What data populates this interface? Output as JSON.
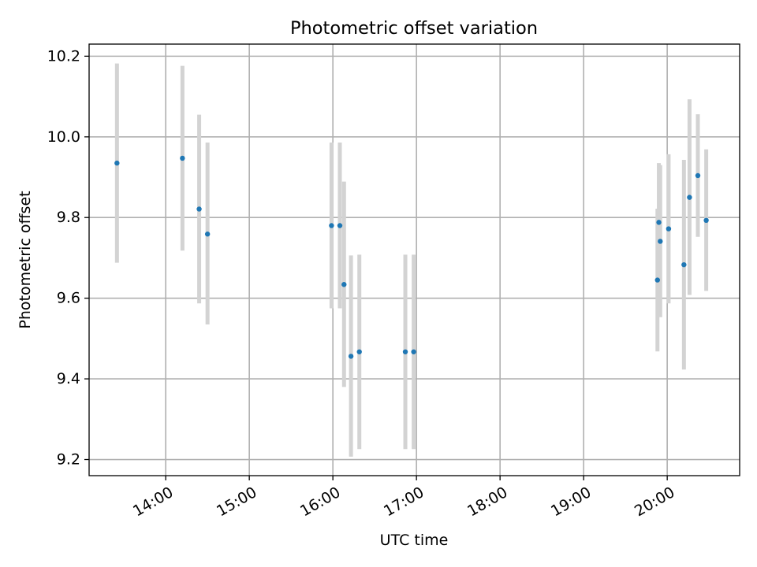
{
  "chart_data": {
    "type": "scatter",
    "title": "Photometric offset variation",
    "xlabel": "UTC time",
    "ylabel": "Photometric offset",
    "xlim": [
      "13:05",
      "20:52"
    ],
    "ylim": [
      9.16,
      10.23
    ],
    "x_ticks": [
      "14:00",
      "15:00",
      "16:00",
      "17:00",
      "18:00",
      "19:00",
      "20:00"
    ],
    "y_ticks": [
      "9.2",
      "9.4",
      "9.6",
      "9.8",
      "10.0",
      "10.2"
    ],
    "grid": true,
    "colors": {
      "points": "#1f77b4",
      "error_bars": "#d3d3d3",
      "grid": "#b0b0b0"
    },
    "series": [
      {
        "points": [
          {
            "x": "13:25",
            "y": 9.935,
            "ylow": 9.688,
            "yhigh": 10.182
          },
          {
            "x": "14:12",
            "y": 9.947,
            "ylow": 9.718,
            "yhigh": 10.176
          },
          {
            "x": "14:24",
            "y": 9.821,
            "ylow": 9.587,
            "yhigh": 10.055
          },
          {
            "x": "14:30",
            "y": 9.759,
            "ylow": 9.535,
            "yhigh": 9.986
          },
          {
            "x": "15:59",
            "y": 9.78,
            "ylow": 9.575,
            "yhigh": 9.986
          },
          {
            "x": "16:05",
            "y": 9.78,
            "ylow": 9.575,
            "yhigh": 9.986
          },
          {
            "x": "16:08",
            "y": 9.634,
            "ylow": 9.38,
            "yhigh": 9.889
          },
          {
            "x": "16:13",
            "y": 9.456,
            "ylow": 9.207,
            "yhigh": 9.706
          },
          {
            "x": "16:19",
            "y": 9.467,
            "ylow": 9.226,
            "yhigh": 9.708
          },
          {
            "x": "16:52",
            "y": 9.467,
            "ylow": 9.226,
            "yhigh": 9.708
          },
          {
            "x": "16:58",
            "y": 9.467,
            "ylow": 9.226,
            "yhigh": 9.708
          },
          {
            "x": "19:53",
            "y": 9.645,
            "ylow": 9.468,
            "yhigh": 9.822
          },
          {
            "x": "19:54",
            "y": 9.788,
            "ylow": 9.642,
            "yhigh": 9.935
          },
          {
            "x": "19:55",
            "y": 9.741,
            "ylow": 9.553,
            "yhigh": 9.93
          },
          {
            "x": "20:01",
            "y": 9.772,
            "ylow": 9.587,
            "yhigh": 9.957
          },
          {
            "x": "20:12",
            "y": 9.683,
            "ylow": 9.423,
            "yhigh": 9.943
          },
          {
            "x": "20:16",
            "y": 9.85,
            "ylow": 9.608,
            "yhigh": 10.093
          },
          {
            "x": "20:22",
            "y": 9.904,
            "ylow": 9.752,
            "yhigh": 10.056
          },
          {
            "x": "20:28",
            "y": 9.793,
            "ylow": 9.618,
            "yhigh": 9.969
          }
        ]
      }
    ]
  }
}
